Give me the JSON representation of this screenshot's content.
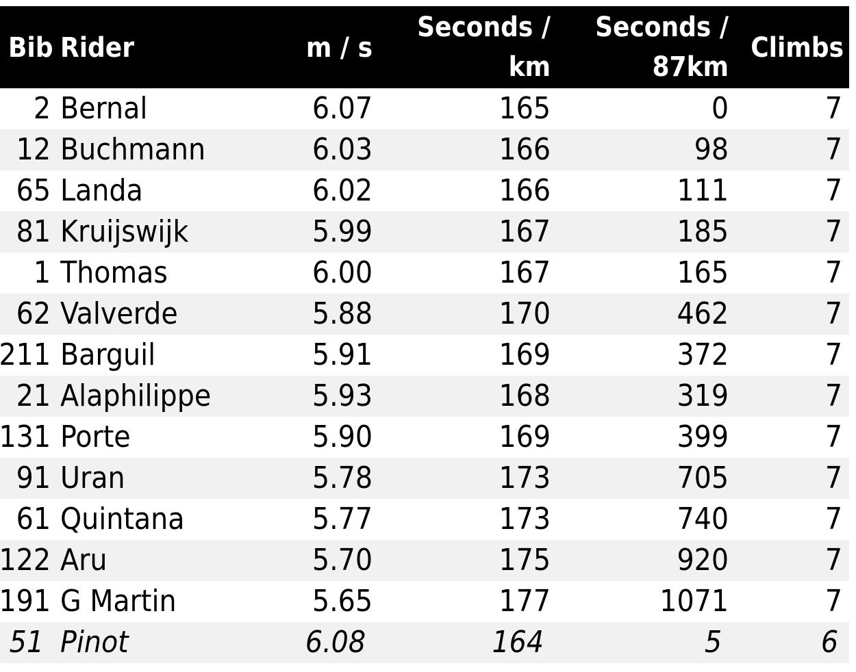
{
  "chart_data": {
    "type": "table",
    "columns": [
      "Bib",
      "Rider",
      "m / s",
      "Seconds /\nkm",
      "Seconds /\n87km",
      "Climbs"
    ],
    "rows": [
      {
        "bib": "2",
        "rider": "Bernal",
        "ms": "6.07",
        "spk": "165",
        "s87": "0",
        "climbs": "7",
        "italic": false
      },
      {
        "bib": "12",
        "rider": "Buchmann",
        "ms": "6.03",
        "spk": "166",
        "s87": "98",
        "climbs": "7",
        "italic": false
      },
      {
        "bib": "65",
        "rider": "Landa",
        "ms": "6.02",
        "spk": "166",
        "s87": "111",
        "climbs": "7",
        "italic": false
      },
      {
        "bib": "81",
        "rider": "Kruijswijk",
        "ms": "5.99",
        "spk": "167",
        "s87": "185",
        "climbs": "7",
        "italic": false
      },
      {
        "bib": "1",
        "rider": "Thomas",
        "ms": "6.00",
        "spk": "167",
        "s87": "165",
        "climbs": "7",
        "italic": false
      },
      {
        "bib": "62",
        "rider": "Valverde",
        "ms": "5.88",
        "spk": "170",
        "s87": "462",
        "climbs": "7",
        "italic": false
      },
      {
        "bib": "211",
        "rider": "Barguil",
        "ms": "5.91",
        "spk": "169",
        "s87": "372",
        "climbs": "7",
        "italic": false
      },
      {
        "bib": "21",
        "rider": "Alaphilippe",
        "ms": "5.93",
        "spk": "168",
        "s87": "319",
        "climbs": "7",
        "italic": false
      },
      {
        "bib": "131",
        "rider": "Porte",
        "ms": "5.90",
        "spk": "169",
        "s87": "399",
        "climbs": "7",
        "italic": false
      },
      {
        "bib": "91",
        "rider": "Uran",
        "ms": "5.78",
        "spk": "173",
        "s87": "705",
        "climbs": "7",
        "italic": false
      },
      {
        "bib": "61",
        "rider": "Quintana",
        "ms": "5.77",
        "spk": "173",
        "s87": "740",
        "climbs": "7",
        "italic": false
      },
      {
        "bib": "122",
        "rider": "Aru",
        "ms": "5.70",
        "spk": "175",
        "s87": "920",
        "climbs": "7",
        "italic": false
      },
      {
        "bib": "191",
        "rider": "G Martin",
        "ms": "5.65",
        "spk": "177",
        "s87": "1071",
        "climbs": "7",
        "italic": false
      },
      {
        "bib": "51",
        "rider": "Pinot",
        "ms": "6.08",
        "spk": "164",
        "s87": "5",
        "climbs": "6",
        "italic": true
      }
    ],
    "colors": {
      "header_bg": "#000000",
      "header_text": "#ffffff",
      "stripe_bg": "#f1f1f1",
      "row_bg": "#ffffff"
    }
  }
}
